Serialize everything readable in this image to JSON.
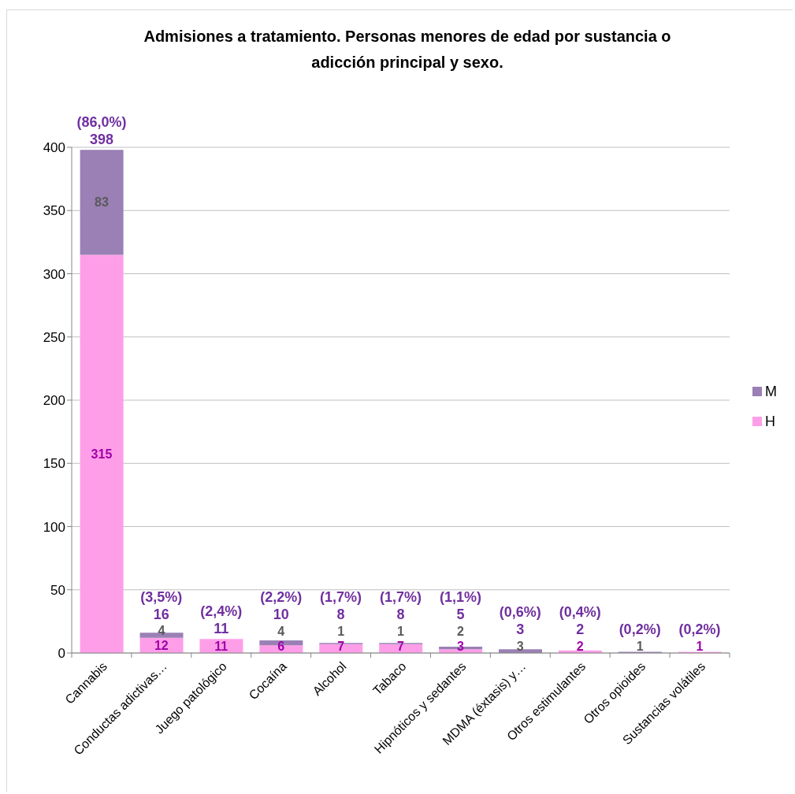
{
  "chart_data": {
    "type": "bar",
    "title": "Admisiones a tratamiento. Personas menores de edad por sustancia o adicción principal y sexo.",
    "categories": [
      "Cannabis",
      "Conductas adictivas…",
      "Juego patológico",
      "Cocaína",
      "Alcohol",
      "Tabaco",
      "Hipnóticos y sedantes",
      "MDMA (éxtasis) y…",
      "Otros estimulantes",
      "Otros opioides",
      "Sustancias volátiles"
    ],
    "stacked": true,
    "series": [
      {
        "name": "H",
        "color": "#ff9ee8",
        "values": [
          315,
          12,
          11,
          6,
          7,
          7,
          3,
          0,
          2,
          0,
          1
        ],
        "value_labels": [
          "315",
          "12",
          "11",
          "6",
          "7",
          "7",
          "3",
          null,
          "2",
          null,
          "1"
        ]
      },
      {
        "name": "M",
        "color": "#9a80b5",
        "values": [
          83,
          4,
          0,
          4,
          1,
          1,
          2,
          3,
          0,
          1,
          0
        ],
        "value_labels": [
          "83",
          "4",
          null,
          "4",
          "1",
          "1",
          "2",
          "3",
          null,
          "1",
          null
        ]
      }
    ],
    "totals": [
      "398",
      "16",
      "11",
      "10",
      "8",
      "8",
      "5",
      "3",
      "2",
      null,
      null
    ],
    "annotations": [
      {
        "text": "(86,0%)",
        "x": "Cannabis",
        "y": 398
      },
      {
        "text": "(3,5%)",
        "x": "Conductas adictivas…",
        "y": 16
      },
      {
        "text": "(2,4%)",
        "x": "Juego patológico",
        "y": 11
      },
      {
        "text": "(2,2%)",
        "x": "Cocaína",
        "y": 10
      },
      {
        "text": "(1,7%)",
        "x": "Alcohol",
        "y": 8
      },
      {
        "text": "(1,7%)",
        "x": "Tabaco",
        "y": 8
      },
      {
        "text": "(1,1%)",
        "x": "Hipnóticos y sedantes",
        "y": 5
      },
      {
        "text": "(0,6%)",
        "x": "MDMA (éxtasis) y…",
        "y": 3
      },
      {
        "text": "(0,4%)",
        "x": "Otros estimulantes",
        "y": 2
      },
      {
        "text": "(0,2%)",
        "x": "Otros opioides",
        "y": 1
      },
      {
        "text": "(0,2%)",
        "x": "Sustancias volátiles",
        "y": 1
      }
    ],
    "ylim": [
      0,
      400
    ],
    "yticks": [
      0,
      50,
      100,
      150,
      200,
      250,
      300,
      350,
      400
    ],
    "grid": "y",
    "legend": "right"
  }
}
